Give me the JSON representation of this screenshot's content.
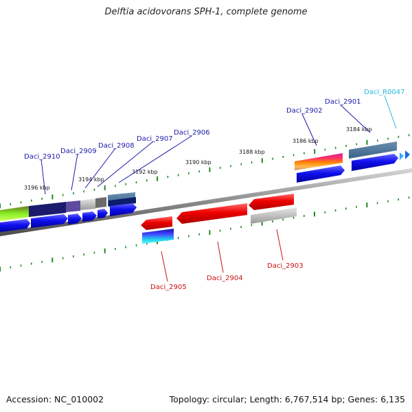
{
  "title": "Delftia acidovorans SPH-1, complete genome",
  "footer": {
    "accession": "Accession: NC_010002",
    "topology": "Topology: circular; Length: 6,767,514 bp; Genes: 6,135"
  },
  "colors": {
    "backbone": "#7a7a7a",
    "tick": "#1e8a1e",
    "forward_label": "#1a1aaa",
    "reverse_label": "#cc1111",
    "rna_label": "#22bbdd"
  },
  "ticks": [
    "3184 kbp",
    "3186 kbp",
    "3188 kbp",
    "3190 kbp",
    "3192 kbp",
    "3194 kbp",
    "3196 kbp"
  ],
  "genes": [
    {
      "name": "Daci_R0047",
      "strand": "forward",
      "type": "rna"
    },
    {
      "name": "Daci_2901",
      "strand": "forward"
    },
    {
      "name": "Daci_2902",
      "strand": "forward"
    },
    {
      "name": "Daci_2903",
      "strand": "reverse"
    },
    {
      "name": "Daci_2904",
      "strand": "reverse"
    },
    {
      "name": "Daci_2905",
      "strand": "reverse"
    },
    {
      "name": "Daci_2906",
      "strand": "forward"
    },
    {
      "name": "Daci_2907",
      "strand": "forward"
    },
    {
      "name": "Daci_2908",
      "strand": "forward"
    },
    {
      "name": "Daci_2909",
      "strand": "forward"
    },
    {
      "name": "Daci_2910",
      "strand": "forward"
    }
  ]
}
